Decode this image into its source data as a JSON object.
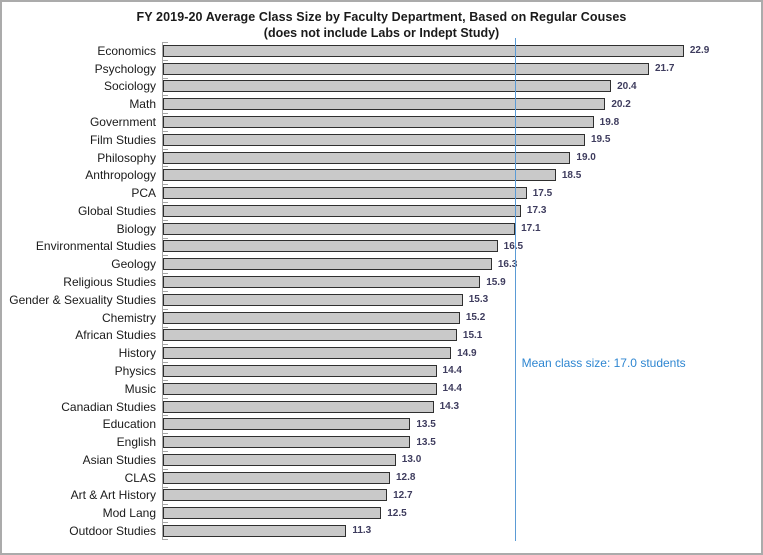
{
  "chart_data": {
    "type": "bar",
    "orientation": "horizontal",
    "title": "FY 2019-20 Average Class Size by Faculty Department, Based on Regular Couses",
    "subtitle": "(does not include Labs or Indept Study)",
    "categories": [
      "Economics",
      "Psychology",
      "Sociology",
      "Math",
      "Government",
      "Film Studies",
      "Philosophy",
      "Anthropology",
      "PCA",
      "Global Studies",
      "Biology",
      "Environmental Studies",
      "Geology",
      "Religious Studies",
      "Gender & Sexuality Studies",
      "Chemistry",
      "African Studies",
      "History",
      "Physics",
      "Music",
      "Canadian Studies",
      "Education",
      "English",
      "Asian Studies",
      "CLAS",
      "Art & Art History",
      "Mod Lang",
      "Outdoor Studies"
    ],
    "values": [
      22.9,
      21.7,
      20.4,
      20.2,
      19.8,
      19.5,
      19.0,
      18.5,
      17.5,
      17.3,
      17.1,
      16.5,
      16.3,
      15.9,
      15.3,
      15.2,
      15.1,
      14.9,
      14.4,
      14.4,
      14.3,
      13.5,
      13.5,
      13.0,
      12.8,
      12.7,
      12.5,
      11.3
    ],
    "value_labels": [
      "22.9",
      "21.7",
      "20.4",
      "20.2",
      "19.8",
      "19.5",
      "19.0",
      "18.5",
      "17.5",
      "17.3",
      "17.1",
      "16.5",
      "16.3",
      "15.9",
      "15.3",
      "15.2",
      "15.1",
      "14.9",
      "14.4",
      "14.4",
      "14.3",
      "13.5",
      "13.5",
      "13.0",
      "12.8",
      "12.7",
      "12.5",
      "11.3"
    ],
    "xlabel": "",
    "ylabel": "",
    "xlim": [
      5,
      25
    ],
    "grid": false,
    "legend": "none",
    "mean": 17.0,
    "annotation": "Mean class size: 17.0 students",
    "colors": {
      "bar_fill": "#c9c9c9",
      "bar_border": "#2f2f2f",
      "value_label_text": "#3e3c5e",
      "mean_line": "#5b9bd5",
      "annotation_text": "#2e86d1",
      "axis_and_ticks": "#a6a6a6",
      "chart_border": "#ababab",
      "background": "#ffffff"
    }
  }
}
